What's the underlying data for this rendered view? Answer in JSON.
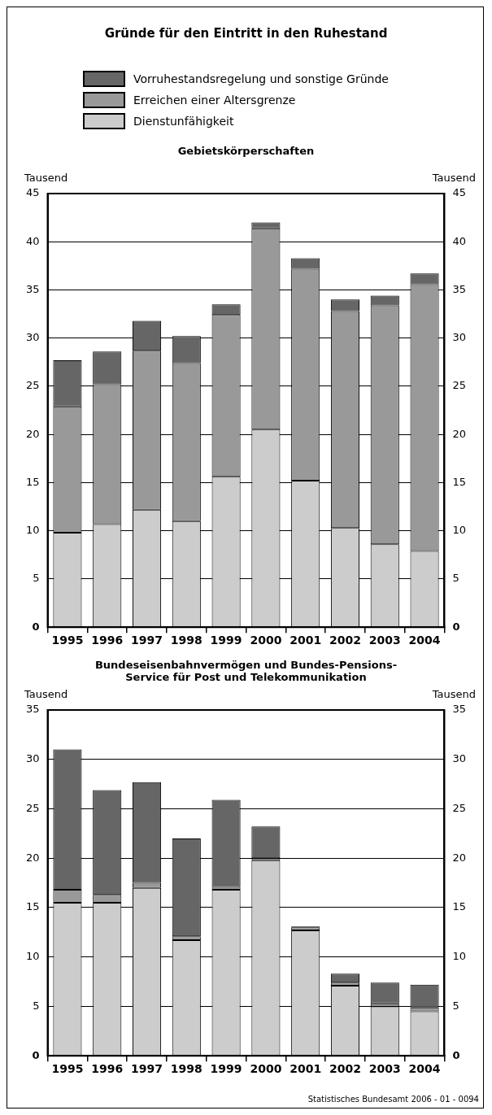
{
  "chart_data": [
    {
      "type": "bar",
      "title": "Gründe für den Eintritt in den Ruhestand",
      "subtitle": "Gebietskörperschaften",
      "categories": [
        "1995",
        "1996",
        "1997",
        "1998",
        "1999",
        "2000",
        "2001",
        "2002",
        "2003",
        "2004"
      ],
      "stacked": true,
      "series": [
        {
          "name": "Dienstunfähigkeit",
          "color": "#cccccc",
          "values": [
            9.8,
            10.7,
            12.2,
            11.0,
            15.6,
            20.5,
            15.2,
            10.3,
            8.6,
            7.9
          ]
        },
        {
          "name": "Erreichen einer Altersgrenze",
          "color": "#999999",
          "values": [
            13.1,
            14.5,
            16.5,
            16.4,
            16.8,
            20.9,
            22.0,
            22.5,
            24.8,
            27.7
          ]
        },
        {
          "name": "Vorruhestandsregelung und sonstige Gründe",
          "color": "#666666",
          "values": [
            4.8,
            3.4,
            3.1,
            2.8,
            1.1,
            0.6,
            1.1,
            1.2,
            1.0,
            1.1
          ]
        }
      ],
      "ylim": [
        0,
        45
      ],
      "yticks": [
        0,
        5,
        10,
        15,
        20,
        25,
        30,
        35,
        40,
        45
      ],
      "y2lim": [
        0,
        45
      ],
      "y2ticks": [
        0,
        5,
        10,
        15,
        20,
        25,
        30,
        35,
        40,
        45
      ],
      "ylabel": "Tausend",
      "y2label": "Tausend",
      "grid": "y",
      "legend": "top"
    },
    {
      "type": "bar",
      "title": "Bundeseisenbahnvermögen und Bundes-Pensions-Service für Post und Telekommunikation",
      "categories": [
        "1995",
        "1996",
        "1997",
        "1998",
        "1999",
        "2000",
        "2001",
        "2002",
        "2003",
        "2004"
      ],
      "stacked": true,
      "series": [
        {
          "color": "#cccccc",
          "values": [
            15.5,
            15.5,
            17.0,
            11.7,
            16.8,
            19.8,
            12.7,
            7.1,
            5.0,
            4.5
          ]
        },
        {
          "color": "#999999",
          "values": [
            1.3,
            0.8,
            0.5,
            0.4,
            0.3,
            0.2,
            0.3,
            0.3,
            0.3,
            0.4
          ]
        },
        {
          "color": "#666666",
          "values": [
            14.2,
            10.6,
            10.2,
            9.9,
            8.8,
            3.2,
            0.1,
            0.9,
            2.1,
            2.3
          ]
        }
      ],
      "ylim": [
        0,
        35
      ],
      "yticks": [
        0,
        5,
        10,
        15,
        20,
        25,
        30,
        35
      ],
      "y2lim": [
        0,
        35
      ],
      "y2ticks": [
        0,
        5,
        10,
        15,
        20,
        25,
        30,
        35
      ],
      "ylabel": "Tausend",
      "y2label": "Tausend",
      "grid": "y",
      "annotations": [
        "Statistisches Bundesamt 2006 - 01 - 0094"
      ]
    }
  ]
}
